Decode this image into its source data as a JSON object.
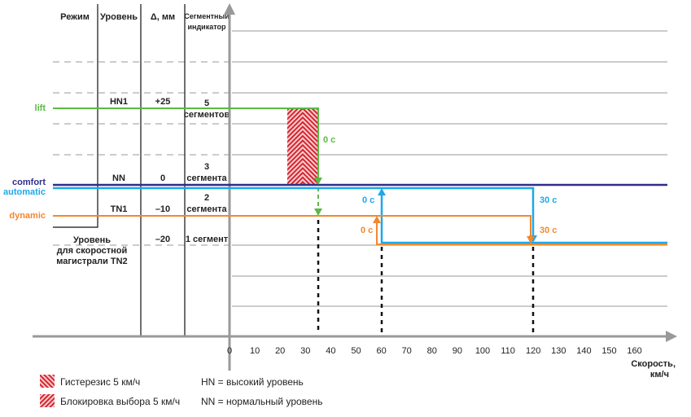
{
  "table": {
    "headers": {
      "mode": "Режим",
      "level": "Уровень",
      "delta": "Δ, мм",
      "indicator_1": "Сегментный",
      "indicator_2": "индикатор"
    },
    "rows": [
      {
        "level": "HN1",
        "delta": "+25",
        "indicator_1": "5",
        "indicator_2": "сегментов"
      },
      {
        "level": "NN",
        "delta": "0",
        "indicator_1": "3",
        "indicator_2": "сегмента"
      },
      {
        "level": "TN1",
        "delta": "–10",
        "indicator_1": "2",
        "indicator_2": "сегмента"
      },
      {
        "level_1": "Уровень",
        "level_2": "для скоростной",
        "level_3": "магистрали TN2",
        "delta": "–20",
        "indicator_1": "1 сегмент"
      }
    ]
  },
  "modes": {
    "lift": "lift",
    "comfort": "comfort",
    "automatic": "automatic",
    "dynamic": "dynamic"
  },
  "colors": {
    "lift": "#5bb946",
    "comfort": "#2e2e8a",
    "automatic": "#1ea8e8",
    "dynamic": "#f0892e",
    "hysteresis": "#e0303a"
  },
  "annotations": {
    "lift_delay": "0 с",
    "auto_up": "0 с",
    "dyn_up": "0 с",
    "auto_down": "30 с",
    "dyn_down": "30 с"
  },
  "x_axis": {
    "ticks": [
      "0",
      "10",
      "20",
      "30",
      "40",
      "50",
      "60",
      "70",
      "80",
      "90",
      "100",
      "110",
      "120",
      "130",
      "140",
      "150",
      "160"
    ],
    "label_1": "Скорость,",
    "label_2": "км/ч"
  },
  "legend": {
    "hysteresis": "Гистерезис 5 км/ч",
    "lockout": "Блокировка выбора 5 км/ч",
    "hn": "HN = высокий уровень",
    "nn": "NN = нормальный уровень"
  }
}
